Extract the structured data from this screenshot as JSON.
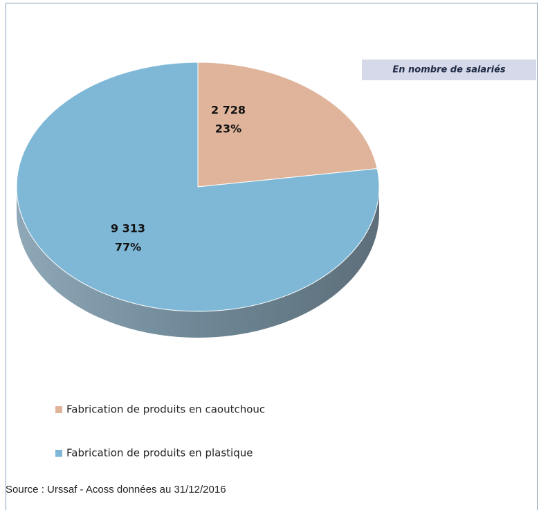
{
  "chart_data": {
    "type": "pie",
    "categories": [
      "Fabrication de produits en caoutchouc",
      "Fabrication de produits en plastique"
    ],
    "values": [
      2728,
      9313
    ],
    "value_labels": [
      "2 728",
      "9 313"
    ],
    "percents": [
      23,
      77
    ],
    "percent_labels": [
      "23%",
      "77%"
    ],
    "colors": [
      "#dfb49a",
      "#7fb8d6"
    ],
    "annotation": "En nombre de salariés",
    "source": "Source : Urssaf - Acoss données au 31/12/2016",
    "legend": "bottom-left"
  }
}
